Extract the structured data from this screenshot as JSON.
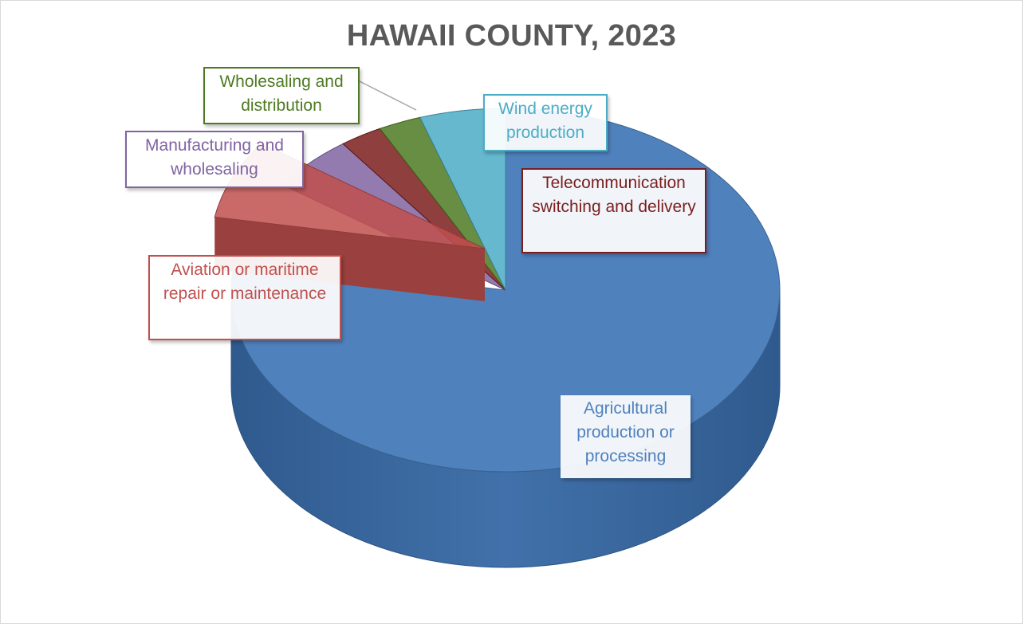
{
  "chart_data": {
    "type": "pie",
    "title": "HAWAII COUNTY, 2023",
    "labels": [
      "Agricultural production or processing",
      "Aviation or maritime repair or maintenance",
      "Manufacturing and wholesaling",
      "Telecommunication switching and delivery",
      "Wholesaling and distribution",
      "Wind energy production"
    ],
    "values": [
      77,
      7,
      5,
      2.5,
      2.5,
      5
    ],
    "colors": [
      "#4f81bd",
      "#c0504d",
      "#8064a2",
      "#7b1e1c",
      "#4e7a22",
      "#4bacc6"
    ],
    "legend": "none",
    "data_labels": "category callouts"
  },
  "callouts": {
    "wholesaling": "Wholesaling and distribution",
    "wind": "Wind energy production",
    "manufacturing": "Manufacturing and wholesaling",
    "telecom": "Telecommunication switching and delivery",
    "aviation": "Aviation or maritime repair or maintenance",
    "agricultural": "Agricultural production or processing"
  }
}
